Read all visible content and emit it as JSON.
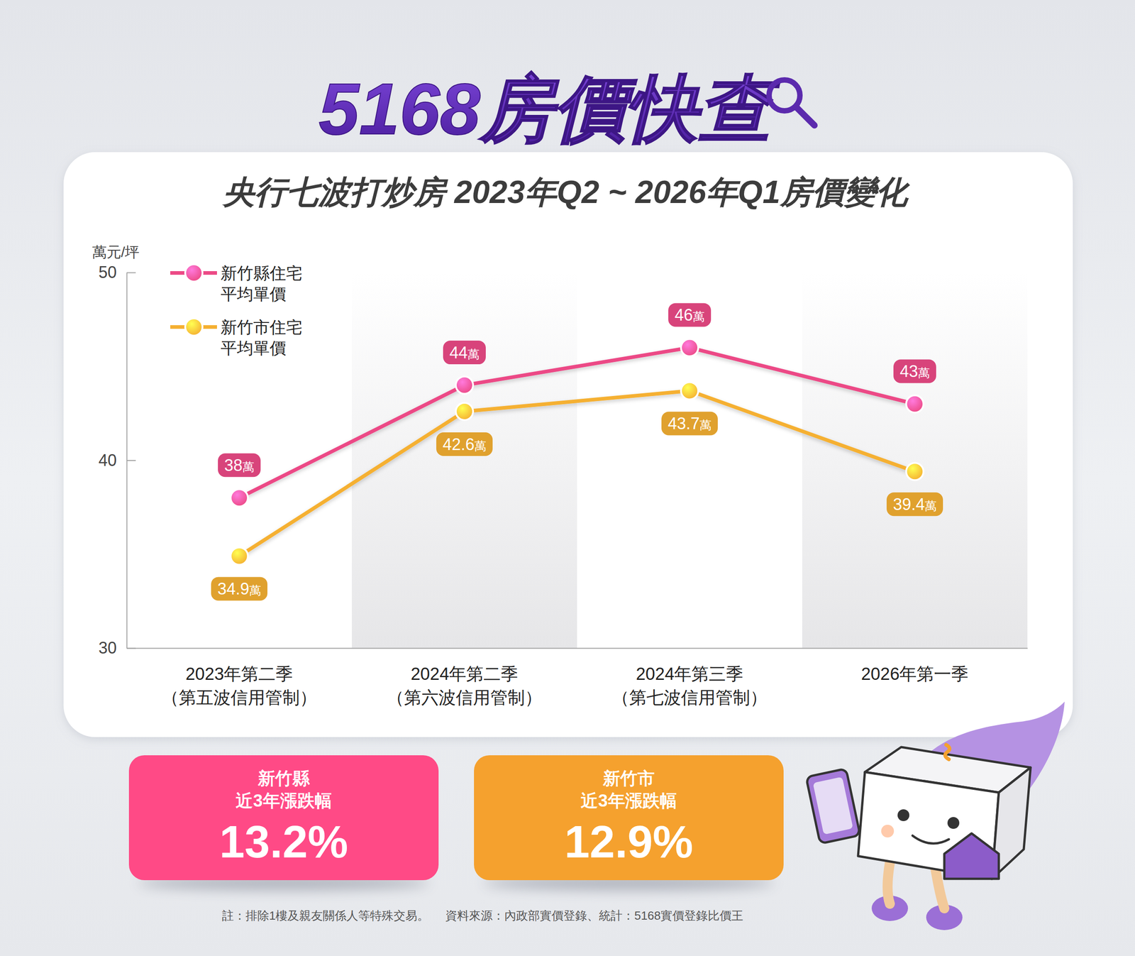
{
  "header": {
    "logo": "5168房價快查"
  },
  "chart_data": {
    "type": "line",
    "title": "央行七波打炒房 2023年Q2 ~ 2026年Q1房價變化",
    "y_label": "萬元/坪",
    "categories": [
      "2023年第二季\n（第五波信用管制）",
      "2024年第二季\n（第六波信用管制）",
      "2024年第三季\n（第七波信用管制）",
      "2026年第一季"
    ],
    "series": [
      {
        "name": "新竹縣住宅平均單價",
        "color": "#ec4a86",
        "marker": "circle",
        "values": [
          38,
          44,
          46,
          43
        ],
        "value_labels": [
          "38萬",
          "44萬",
          "46萬",
          "43萬"
        ]
      },
      {
        "name": "新竹市住宅平均單價",
        "color": "#f5b032",
        "marker": "circle",
        "values": [
          34.9,
          42.6,
          43.7,
          39.4
        ],
        "value_labels": [
          "34.9萬",
          "42.6萬",
          "43.7萬",
          "39.4萬"
        ]
      }
    ],
    "ylim": [
      30,
      50
    ],
    "yticks": [
      30,
      40,
      50
    ],
    "grid": false,
    "legend": "top-left",
    "data_labels": true
  },
  "summary": [
    {
      "region": "新竹縣",
      "label": "近3年漲跌幅",
      "change": "13.2%",
      "color": "#ff4a86"
    },
    {
      "region": "新竹市",
      "label": "近3年漲跌幅",
      "change": "12.9%",
      "color": "#f5a12e"
    }
  ],
  "footnote": [
    "註：排除1樓及親友關係人等特殊交易。",
    "資料來源：內政部實價登錄、統計：5168實價登錄比價王"
  ]
}
